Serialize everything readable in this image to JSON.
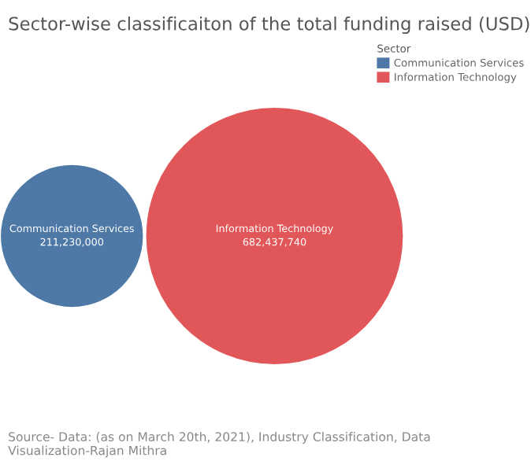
{
  "chart_data": {
    "type": "other",
    "title": "Sector-wise classificaiton of the total funding raised (USD)",
    "series": [
      {
        "name": "Communication Services",
        "color": "#4e79a7",
        "values": [
          211230000
        ],
        "value_labels": [
          "211,230,000"
        ]
      },
      {
        "name": "Information Technology",
        "color": "#e15759",
        "values": [
          682437740
        ],
        "value_labels": [
          "682,437,740"
        ]
      }
    ],
    "legend_title": "Sector",
    "legend": "top right",
    "annotations": [
      "Source- Data: (as on March 20th, 2021), Industry Classification, Data Visualization-Rajan Mithra"
    ]
  }
}
